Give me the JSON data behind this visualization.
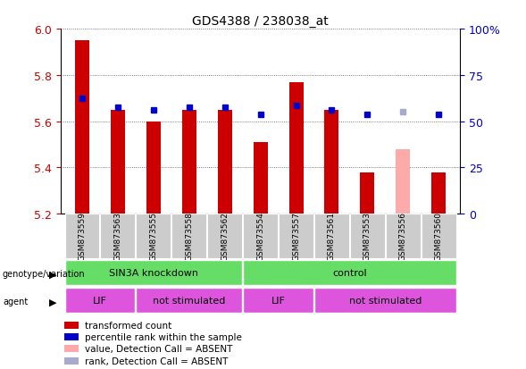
{
  "title": "GDS4388 / 238038_at",
  "samples": [
    "GSM873559",
    "GSM873563",
    "GSM873555",
    "GSM873558",
    "GSM873562",
    "GSM873554",
    "GSM873557",
    "GSM873561",
    "GSM873553",
    "GSM873556",
    "GSM873560"
  ],
  "red_values": [
    5.95,
    5.65,
    5.6,
    5.65,
    5.65,
    5.51,
    5.77,
    5.65,
    5.38,
    null,
    5.38
  ],
  "blue_values": [
    5.7,
    5.66,
    5.65,
    5.66,
    5.66,
    5.63,
    5.67,
    5.65,
    5.63,
    null,
    5.63
  ],
  "absent_red": [
    null,
    null,
    null,
    null,
    null,
    null,
    null,
    null,
    null,
    5.48,
    null
  ],
  "absent_blue": [
    null,
    null,
    null,
    null,
    null,
    null,
    null,
    null,
    null,
    5.64,
    null
  ],
  "ylim": [
    5.2,
    6.0
  ],
  "yticks": [
    5.2,
    5.4,
    5.6,
    5.8,
    6.0
  ],
  "right_yticks": [
    0,
    25,
    50,
    75,
    100
  ],
  "right_ylabels": [
    "0",
    "25",
    "50",
    "75",
    "100%"
  ],
  "bar_bottom": 5.2,
  "bar_width": 0.4,
  "red_color": "#cc0000",
  "blue_color": "#0000cc",
  "absent_red_color": "#ffaaaa",
  "absent_blue_color": "#aaaacc",
  "grid_color": "#555555",
  "background_color": "#ffffff",
  "label_color_left": "#cc0000",
  "label_color_right": "#0000cc",
  "gv_groups": [
    {
      "label": "SIN3A knockdown",
      "start": 0,
      "end": 5
    },
    {
      "label": "control",
      "start": 5,
      "end": 11
    }
  ],
  "agent_groups": [
    {
      "label": "LIF",
      "start": 0,
      "end": 2
    },
    {
      "label": "not stimulated",
      "start": 2,
      "end": 5
    },
    {
      "label": "LIF",
      "start": 5,
      "end": 7
    },
    {
      "label": "not stimulated",
      "start": 7,
      "end": 11
    }
  ],
  "green_color": "#66dd66",
  "magenta_color": "#dd55dd",
  "gray_cell_color": "#cccccc",
  "legend_items": [
    {
      "color": "#cc0000",
      "label": "transformed count"
    },
    {
      "color": "#0000cc",
      "label": "percentile rank within the sample"
    },
    {
      "color": "#ffaaaa",
      "label": "value, Detection Call = ABSENT"
    },
    {
      "color": "#aaaacc",
      "label": "rank, Detection Call = ABSENT"
    }
  ]
}
